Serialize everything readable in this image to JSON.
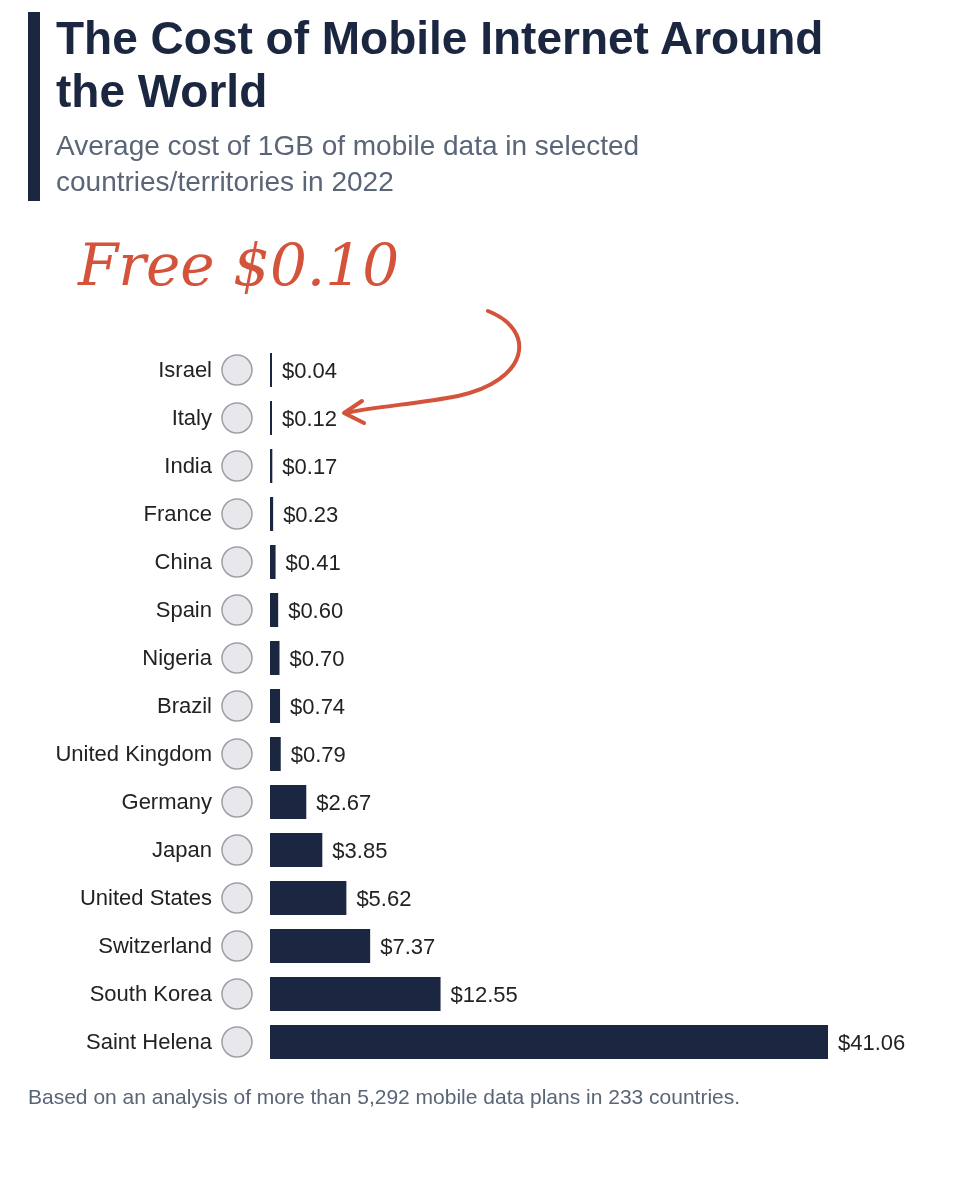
{
  "chart_data": {
    "type": "bar",
    "orientation": "horizontal",
    "title": "The Cost of Mobile Internet Around the World",
    "subtitle": "Average cost of 1GB of mobile data in selected countries/territories in 2022",
    "categories": [
      "Israel",
      "Italy",
      "India",
      "France",
      "China",
      "Spain",
      "Nigeria",
      "Brazil",
      "United Kingdom",
      "Germany",
      "Japan",
      "United States",
      "Switzerland",
      "South Korea",
      "Saint Helena"
    ],
    "values": [
      0.04,
      0.12,
      0.17,
      0.23,
      0.41,
      0.6,
      0.7,
      0.74,
      0.79,
      2.67,
      3.85,
      5.62,
      7.37,
      12.55,
      41.06
    ],
    "value_labels": [
      "$0.04",
      "$0.12",
      "$0.17",
      "$0.23",
      "$0.41",
      "$0.60",
      "$0.70",
      "$0.74",
      "$0.79",
      "$2.67",
      "$3.85",
      "$5.62",
      "$7.37",
      "$12.55",
      "$41.06"
    ],
    "color": "#1b2640",
    "grid": false,
    "legend": false,
    "annotations": [
      "Free $0.10",
      "Based on an analysis of more than 5,292 mobile data plans in 233 countries."
    ]
  }
}
